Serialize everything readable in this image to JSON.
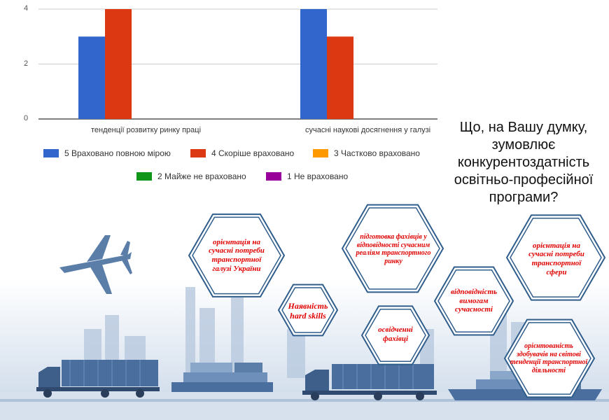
{
  "chart_data": {
    "type": "bar",
    "title": "",
    "categories": [
      "тенденції розвитку ринку праці",
      "сучасні наукові досягнення у галузі"
    ],
    "y_ticks": [
      "0",
      "2",
      "4"
    ],
    "ylim": [
      0,
      4.2
    ],
    "series": [
      {
        "name": "5 Враховано повною мірою",
        "color": "#3366cc",
        "values": [
          3,
          4
        ]
      },
      {
        "name": "4 Скоріше враховано",
        "color": "#dc3912",
        "values": [
          4,
          3
        ]
      },
      {
        "name": "3 Частково враховано",
        "color": "#ff9900",
        "values": [
          0,
          0
        ]
      },
      {
        "name": "2 Майже не враховано",
        "color": "#109618",
        "values": [
          0,
          0
        ]
      },
      {
        "name": "1 Не враховано",
        "color": "#990099",
        "values": [
          0,
          0
        ]
      }
    ],
    "legend_position": "bottom",
    "grid": true
  },
  "question": "Що, на Вашу думку, зумовлює конкурентоздатність освітньо-професійної програми?",
  "hexagons": [
    {
      "text": "орієнтація на сучасні потреби транспортної галузі України"
    },
    {
      "text": "Наявність hard skills"
    },
    {
      "text": "підготовка фахівців у відповідності сучасним реаліям транспортного ринку"
    },
    {
      "text": "освідченні фахівці"
    },
    {
      "text": "відповідність вимогам сучасності"
    },
    {
      "text": "орієнтація на сучасні потреби транспортної сфери"
    },
    {
      "text": "орієнтованість здобувачів на світові тенденції транспортної діяльності"
    }
  ],
  "colors": {
    "hex_border": "#2f5d8c",
    "hex_text": "#e00000",
    "illustration": "#5b7ea8"
  },
  "icons": [
    "airplane-icon",
    "truck-icon",
    "ship-icon"
  ]
}
